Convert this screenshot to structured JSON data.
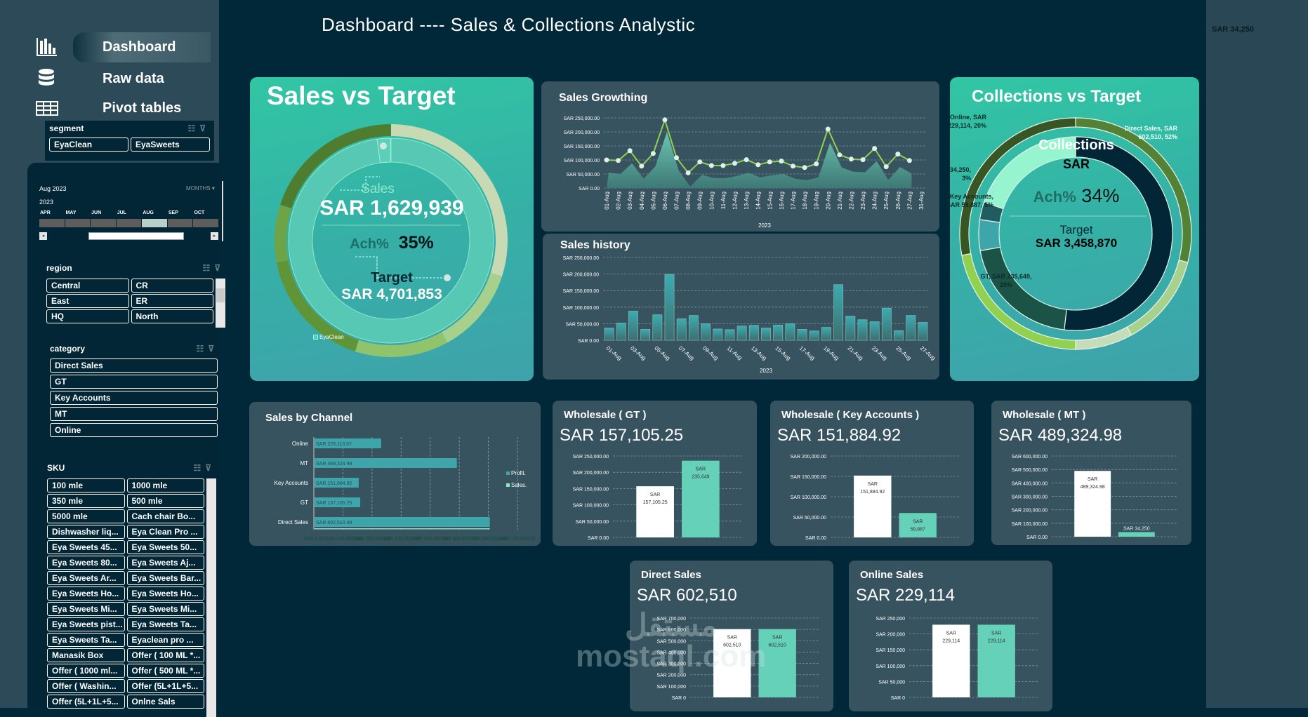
{
  "title": "Dashboard ---- Sales & Collections Analystic",
  "top_right_value": "SAR 34,250",
  "nav": [
    {
      "label": "Dashboard",
      "icon": "bar-chart-icon",
      "active": true
    },
    {
      "label": "Raw data",
      "icon": "database-icon",
      "active": false
    },
    {
      "label": "Pivot tables",
      "icon": "table-icon",
      "active": false
    }
  ],
  "segment": {
    "label": "segment",
    "items": [
      "EyaClean",
      "EyaSweets"
    ]
  },
  "timeline": {
    "selected": "Aug 2023",
    "level": "MONTHS",
    "year": "2023",
    "months": [
      "APR",
      "MAY",
      "JUN",
      "JUL",
      "AUG",
      "SEP",
      "OCT"
    ],
    "selected_month": "AUG"
  },
  "region": {
    "label": "region",
    "items": [
      "Central",
      "CR",
      "East",
      "ER",
      "HQ",
      "North"
    ]
  },
  "category": {
    "label": "category",
    "items": [
      "Direct Sales",
      "GT",
      "Key Accounts",
      "MT",
      "Online"
    ]
  },
  "sku": {
    "label": "SKU",
    "items": [
      "100 mle",
      "1000 mle",
      "350 mle",
      "500 mle",
      "5000 mle",
      "Cach chair Bo...",
      "Dishwasher liq...",
      "Eya Clean Pro ...",
      "Eya Sweets 45...",
      "Eya Sweets 50...",
      "Eya Sweets 80...",
      "Eya Sweets Aj...",
      "Eya Sweets Ar...",
      "Eya Sweets Bar...",
      "Eya Sweets Ho...",
      "Eya Sweets Ho...",
      "Eya Sweets Mi...",
      "Eya Sweets Mi...",
      "Eya Sweets pist...",
      "Eya Sweets Ta...",
      "Eya Sweets Ta...",
      "Eyaclean pro ...",
      "Manasik Box",
      "Offer ( 100 ML *...",
      "Offer ( 1000 ml...",
      "Offer ( 500 ML *...",
      "Offer ( Washin...",
      "Offer (5L+1L+5...",
      "Offer (5L+1L+5...",
      "Onlne Sals"
    ]
  },
  "sales_vs_target": {
    "title": "Sales vs Target",
    "sales_label": "Sales",
    "sales_value": "SAR 1,629,939",
    "ach_label": "Ach%",
    "ach_value": "35%",
    "target_label": "Target",
    "target_value": "SAR 4,701,853",
    "legend": "EyaClean",
    "achievement": 0.35
  },
  "collections_vs_target": {
    "title": "Collections vs Target",
    "center_title": "Collections",
    "center_sub": "SAR",
    "ach_label": "Ach%",
    "ach_value": "34%",
    "target_label": "Target",
    "target_value": "SAR 3,458,870",
    "inner_ring": [
      {
        "name": "Direct Sales",
        "value": 602510,
        "label": "Direct Sales, SAR 602,510, 52%",
        "color": "#022636"
      },
      {
        "name": "GT",
        "value": 235649,
        "label": "GT, SAR 235,649, 20%",
        "color": "#1b5447"
      },
      {
        "name": "Key Accounts",
        "value": 59887,
        "label": "Key Accounts, SAR 59,887, 5%",
        "color": "#3ea5ab"
      },
      {
        "name": "MT",
        "value": 34250,
        "label": "MT, SAR 34,250, 3%",
        "color": "#215c60"
      },
      {
        "name": "Online",
        "value": 229114,
        "label": "Online, SAR 229,114, 20%",
        "color": "#96f5cf"
      }
    ],
    "outer_ring_colors": [
      "#548235",
      "#a9d18e",
      "#c5dcb8",
      "#92d050",
      "#375623"
    ],
    "outer_ring_shares": [
      0.29,
      0.13,
      0.08,
      0.22,
      0.28
    ]
  },
  "chart_data": [
    {
      "id": "sales_growth",
      "type": "line",
      "title": "Sales Growthing",
      "xlabel": "2023",
      "categories": [
        "01-Aug",
        "02-Aug",
        "03-Aug",
        "04-Aug",
        "05-Aug",
        "06-Aug",
        "07-Aug",
        "08-Aug",
        "09-Aug",
        "10-Aug",
        "11-Aug",
        "12-Aug",
        "13-Aug",
        "14-Aug",
        "15-Aug",
        "16-Aug",
        "17-Aug",
        "18-Aug",
        "19-Aug",
        "20-Aug",
        "21-Aug",
        "22-Aug",
        "23-Aug",
        "24-Aug",
        "25-Aug",
        "26-Aug",
        "27-Aug",
        "31-Aug"
      ],
      "yticks": [
        "SAR 0.00",
        "SAR 50,000.00",
        "SAR 100,000.00",
        "SAR 150,000.00",
        "SAR 200,000.00",
        "SAR 250,000.00"
      ],
      "ylim": [
        0,
        250000
      ],
      "series": [
        {
          "kind": "line",
          "values": [
            100000,
            98000,
            133000,
            78000,
            123000,
            243000,
            108000,
            54000,
            93000,
            80000,
            80000,
            88000,
            101000,
            83000,
            93000,
            96000,
            78000,
            73000,
            86000,
            210000,
            118000,
            103000,
            101000,
            141000,
            76000,
            121000,
            98000,
            null
          ],
          "color": "#92d050"
        },
        {
          "kind": "area",
          "values": [
            55000,
            50000,
            88000,
            33000,
            77000,
            200000,
            63000,
            5000,
            47000,
            36000,
            35000,
            43000,
            54000,
            38000,
            45000,
            50000,
            33000,
            28000,
            38000,
            162000,
            73000,
            58000,
            56000,
            96000,
            29000,
            75000,
            52000,
            null
          ],
          "color": "#5fb3a6"
        }
      ]
    },
    {
      "id": "sales_history",
      "type": "bar",
      "title": "Sales history",
      "xlabel": "2023",
      "categories": [
        "01-Aug",
        "02-Aug",
        "03-Aug",
        "04-Aug",
        "05-Aug",
        "06-Aug",
        "07-Aug",
        "08-Aug",
        "09-Aug",
        "10-Aug",
        "11-Aug",
        "12-Aug",
        "13-Aug",
        "14-Aug",
        "15-Aug",
        "16-Aug",
        "17-Aug",
        "18-Aug",
        "19-Aug",
        "20-Aug",
        "21-Aug",
        "22-Aug",
        "23-Aug",
        "24-Aug",
        "25-Aug",
        "26-Aug",
        "27-Aug"
      ],
      "tick_labels": [
        "01-Aug",
        "03-Aug",
        "05-Aug",
        "07-Aug",
        "09-Aug",
        "11-Aug",
        "13-Aug",
        "15-Aug",
        "17-Aug",
        "19-Aug",
        "21-Aug",
        "23-Aug",
        "25-Aug",
        "27-Aug"
      ],
      "yticks": [
        "SAR 0.00",
        "SAR 50,000.00",
        "SAR 100,000.00",
        "SAR 150,000.00",
        "SAR 200,000.00",
        "SAR 250,000.00"
      ],
      "ylim": [
        0,
        250000
      ],
      "values": [
        37000,
        52000,
        88000,
        33000,
        77000,
        199000,
        65000,
        75000,
        50000,
        34000,
        32000,
        43000,
        45000,
        37000,
        46000,
        50000,
        33000,
        28000,
        39000,
        168000,
        73000,
        62000,
        56000,
        97000,
        29000,
        75000,
        54000
      ],
      "color": "#3ba7ad"
    },
    {
      "id": "sales_by_channel",
      "type": "bar",
      "orientation": "horizontal",
      "title": "Sales  by Channel",
      "categories": [
        "Online",
        "MT",
        "Key Accounts",
        "GT",
        "Direct Sales"
      ],
      "values": [
        229113.57,
        489324.98,
        151884.92,
        157105.25,
        602510.48
      ],
      "labels": [
        "SAR 229,113.57",
        "SAR 489,324.98",
        "SAR 151,884.92",
        "SAR 157,105.25",
        "SAR 602,510.48"
      ],
      "xticks": [
        "SAR 0.00",
        "SAR 100,000.00",
        "SAR 200,000.00",
        "SAR 300,000.00",
        "SAR 400,000.00",
        "SAR 500,000.00",
        "SAR 600,000.00",
        "SAR 700,000.00"
      ],
      "xlim": [
        0,
        700000
      ],
      "legend": [
        {
          "name": "Profit.",
          "color": "#3ea5ab"
        },
        {
          "name": "Sales.",
          "color": "#8fe8c4"
        }
      ],
      "legend_position": "right"
    },
    {
      "id": "wholesale_gt",
      "type": "bar",
      "title": "Wholesale ( GT )",
      "headline": "SAR 157,105.25",
      "values": [
        157105.25,
        235649
      ],
      "labels": [
        "SAR 157,105.25",
        "SAR 235,649"
      ],
      "colors": [
        "#ffffff",
        "#66d1b9"
      ],
      "yticks": [
        "SAR 0.00",
        "SAR 50,000.00",
        "SAR 100,000.00",
        "SAR 150,000.00",
        "SAR 200,000.00",
        "SAR 250,000.00"
      ],
      "ylim": [
        0,
        250000
      ]
    },
    {
      "id": "wholesale_ka",
      "type": "bar",
      "title": "Wholesale ( Key Accounts )",
      "headline": "SAR 151,884.92",
      "values": [
        151884.92,
        59887
      ],
      "labels": [
        "SAR 151,884.92",
        "SAR 59,887"
      ],
      "colors": [
        "#ffffff",
        "#66d1b9"
      ],
      "yticks": [
        "SAR 0.00",
        "SAR 50,000.00",
        "SAR 100,000.00",
        "SAR 150,000.00",
        "SAR 200,000.00"
      ],
      "ylim": [
        0,
        200000
      ]
    },
    {
      "id": "wholesale_mt",
      "type": "bar",
      "title": "Wholesale ( MT )",
      "headline": "SAR 489,324.98",
      "values": [
        489324.98,
        34250
      ],
      "labels": [
        "SAR 489,324.98",
        "SAR 34,250"
      ],
      "colors": [
        "#ffffff",
        "#66d1b9"
      ],
      "yticks": [
        "SAR 0.00",
        "SAR 100,000.00",
        "SAR 200,000.00",
        "SAR 300,000.00",
        "SAR 400,000.00",
        "SAR 500,000.00",
        "SAR 600,000.00"
      ],
      "ylim": [
        0,
        600000
      ]
    },
    {
      "id": "direct_sales",
      "type": "bar",
      "title": "Direct Sales",
      "headline": "SAR 602,510",
      "values": [
        602510,
        602510
      ],
      "labels": [
        "SAR 602,510",
        "SAR 602,510"
      ],
      "colors": [
        "#ffffff",
        "#66d1b9"
      ],
      "yticks": [
        "SAR 0",
        "SAR 100,000",
        "SAR 200,000",
        "SAR 300,000",
        "SAR 400,000",
        "SAR 500,000",
        "SAR 600,000",
        "SAR 700,000"
      ],
      "ylim": [
        0,
        700000
      ]
    },
    {
      "id": "online_sales",
      "type": "bar",
      "title": "Online Sales",
      "headline": "SAR 229,114",
      "values": [
        229114,
        229114
      ],
      "labels": [
        "SAR 229,114",
        "SAR 229,114"
      ],
      "colors": [
        "#ffffff",
        "#66d1b9"
      ],
      "yticks": [
        "SAR 0",
        "SAR 50,000",
        "SAR 100,000",
        "SAR 150,000",
        "SAR 200,000",
        "SAR 250,000"
      ],
      "ylim": [
        0,
        250000
      ]
    }
  ],
  "watermark": "مستقل mostaql.com"
}
